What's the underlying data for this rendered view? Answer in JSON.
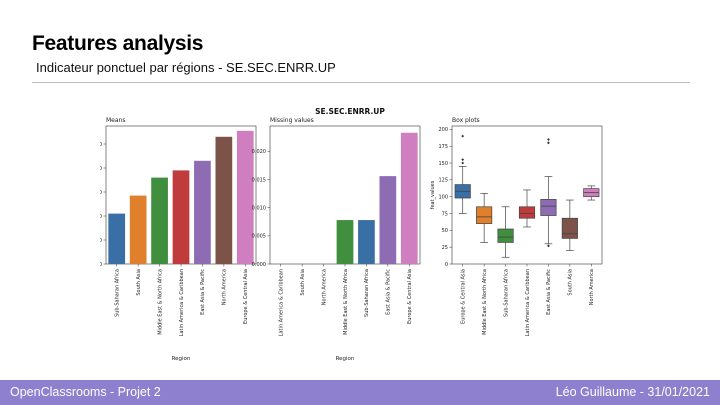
{
  "slide": {
    "title": "Features analysis",
    "subtitle": "Indicateur ponctuel par régions - SE.SEC.ENRR.UP"
  },
  "footer": {
    "left": "OpenClassrooms - Projet 2",
    "right": "Léo Guillaume - 31/01/2021"
  },
  "figure": {
    "suptitle": "SE.SEC.ENRR.UP"
  },
  "chart_data": [
    {
      "type": "bar",
      "title": "Means",
      "xlabel": "Region",
      "ylabel": "",
      "ylim": [
        0,
        115
      ],
      "yticks": [
        0,
        20,
        40,
        60,
        80,
        100
      ],
      "categories": [
        "Sub-Saharan Africa",
        "South Asia",
        "Middle East & North Africa",
        "Latin America & Caribbean",
        "East Asia & Pacific",
        "North America",
        "Europe & Central Asia"
      ],
      "values": [
        42,
        57,
        72,
        78,
        86,
        106,
        111
      ],
      "colors": [
        "#3a6fa6",
        "#e07f2c",
        "#3f8f3f",
        "#c03b3b",
        "#8d6cb3",
        "#7d5248",
        "#cf7fbf"
      ]
    },
    {
      "type": "bar",
      "title": "Missing values",
      "xlabel": "Region",
      "ylabel": "",
      "ylim": [
        0,
        0.0245
      ],
      "yticks": [
        "0.000",
        "0.005",
        "0.010",
        "0.015",
        "0.020"
      ],
      "yticks_values": [
        0,
        0.005,
        0.01,
        0.015,
        0.02
      ],
      "categories": [
        "Latin America & Caribbean",
        "South Asia",
        "North America",
        "Middle East & North Africa",
        "Sub-Saharan Africa",
        "East Asia & Pacific",
        "Europe & Central Asia"
      ],
      "values": [
        0,
        0,
        0,
        0.0078,
        0.0078,
        0.0156,
        0.0233
      ],
      "colors": [
        "#c03b3b",
        "#e07f2c",
        "#7d5248",
        "#3f8f3f",
        "#3a6fa6",
        "#8d6cb3",
        "#cf7fbf"
      ]
    },
    {
      "type": "box",
      "title": "Box plots",
      "xlabel": "",
      "ylabel": "feat_values",
      "ylim": [
        0,
        205
      ],
      "yticks": [
        0,
        25,
        50,
        75,
        100,
        125,
        150,
        175,
        200
      ],
      "categories": [
        "Europe & Central Asia",
        "Middle East & North Africa",
        "Sub-Saharan Africa",
        "Latin America & Caribbean",
        "East Asia & Pacific",
        "South Asia",
        "North America"
      ],
      "colors": [
        "#3a6fa6",
        "#e07f2c",
        "#3f8f3f",
        "#c03b3b",
        "#8d6cb3",
        "#7d5248",
        "#cf7fbf"
      ],
      "boxes": [
        {
          "min": 75,
          "q1": 98,
          "median": 108,
          "q3": 118,
          "max": 145,
          "outliers": [
            150,
            155,
            190
          ]
        },
        {
          "min": 32,
          "q1": 60,
          "median": 70,
          "q3": 85,
          "max": 105,
          "outliers": []
        },
        {
          "min": 10,
          "q1": 32,
          "median": 40,
          "q3": 52,
          "max": 85,
          "outliers": []
        },
        {
          "min": 55,
          "q1": 68,
          "median": 75,
          "q3": 85,
          "max": 110,
          "outliers": []
        },
        {
          "min": 30,
          "q1": 72,
          "median": 86,
          "q3": 96,
          "max": 130,
          "outliers": [
            27,
            180,
            185
          ]
        },
        {
          "min": 20,
          "q1": 38,
          "median": 45,
          "q3": 68,
          "max": 95,
          "outliers": []
        },
        {
          "min": 95,
          "q1": 100,
          "median": 106,
          "q3": 112,
          "max": 116,
          "outliers": []
        }
      ]
    }
  ]
}
